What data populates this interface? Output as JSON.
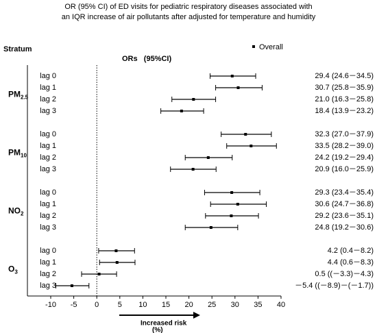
{
  "chart_data": {
    "type": "forest",
    "title": [
      "OR (95% CI) of ED visits for pediatric respiratory diseases associated with",
      "an IQR increase of air pollutants after adjusted for temperature and humidity"
    ],
    "stratum_label": "Stratum",
    "column_label": "ORs   (95%CI)",
    "series_name": "Overall",
    "color": "#000000",
    "xlim": [
      -10,
      40
    ],
    "xticks": [
      -10,
      -5,
      0,
      5,
      10,
      15,
      20,
      25,
      30,
      35,
      40
    ],
    "x_label": [
      "Increased risk",
      "(%)"
    ],
    "groups": [
      {
        "name": "PM",
        "sub": "2.5",
        "lags": [
          "lag 0",
          "lag 1",
          "lag 2",
          "lag 3"
        ],
        "values": [
          29.4,
          30.7,
          21.0,
          18.4
        ],
        "lower": [
          24.6,
          25.8,
          16.3,
          13.9
        ],
        "upper": [
          34.5,
          35.9,
          25.8,
          23.2
        ],
        "value_labels": [
          "29.4 (24.6－34.5)",
          "30.7 (25.8－35.9)",
          "21.0 (16.3－25.8)",
          "18.4 (13.9－23.2)"
        ]
      },
      {
        "name": "PM",
        "sub": "10",
        "lags": [
          "lag 0",
          "lag 1",
          "lag 2",
          "lag 3"
        ],
        "values": [
          32.3,
          33.5,
          24.2,
          20.9
        ],
        "lower": [
          27.0,
          28.2,
          19.2,
          16.0
        ],
        "upper": [
          37.9,
          39.0,
          29.4,
          25.9
        ],
        "value_labels": [
          "32.3 (27.0－37.9)",
          "33.5 (28.2－39.0)",
          "24.2 (19.2－29.4)",
          "20.9 (16.0－25.9)"
        ]
      },
      {
        "name": "NO",
        "sub": "2",
        "lags": [
          "lag 0",
          "lag 1",
          "lag 2",
          "lag 3"
        ],
        "values": [
          29.3,
          30.6,
          29.2,
          24.8
        ],
        "lower": [
          23.4,
          24.7,
          23.6,
          19.2
        ],
        "upper": [
          35.4,
          36.8,
          35.1,
          30.6
        ],
        "value_labels": [
          "29.3 (23.4－35.4)",
          "30.6 (24.7－36.8)",
          "29.2 (23.6－35.1)",
          "24.8 (19.2－30.6)"
        ]
      },
      {
        "name": "O",
        "sub": "3",
        "lags": [
          "lag 0",
          "lag 1",
          "lag 2",
          "lag 3"
        ],
        "values": [
          4.2,
          4.4,
          0.5,
          -5.4
        ],
        "lower": [
          0.4,
          0.6,
          -3.3,
          -8.9
        ],
        "upper": [
          8.2,
          8.3,
          4.3,
          -1.7
        ],
        "value_labels": [
          "4.2 (0.4－8.2)",
          "4.4 (0.6－8.3)",
          "0.5 ((－3.3)－4.3)",
          "－5.4 ((－8.9)－(－1.7))"
        ]
      }
    ]
  }
}
